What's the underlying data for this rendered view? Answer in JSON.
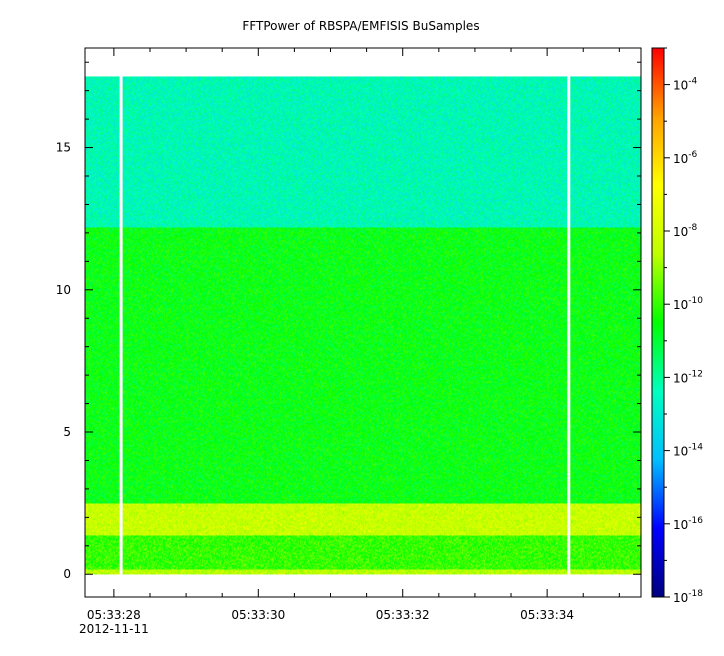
{
  "chart_data": {
    "type": "heatmap",
    "title": "FFTPower of RBSPA/EMFISIS  BuSamples",
    "xlabel": "",
    "ylabel": "",
    "x_axis": {
      "start_label": "05:33:28",
      "start_date": "2012-11-11",
      "tick_labels": [
        "05:33:28",
        "05:33:30",
        "05:33:32",
        "05:33:34"
      ],
      "range": [
        "05:33:27.6",
        "05:33:35.3"
      ]
    },
    "y_axis": {
      "ticks": [
        0,
        5,
        10,
        15
      ],
      "tick_labels": [
        "0",
        "5",
        "10",
        "15"
      ],
      "range": [
        -0.8,
        18.5
      ]
    },
    "colorbar": {
      "scale": "log",
      "range": [
        1e-18,
        0.001
      ],
      "ticks": [
        {
          "base": "10",
          "exp": "-4"
        },
        {
          "base": "10",
          "exp": "-6"
        },
        {
          "base": "10",
          "exp": "-8"
        },
        {
          "base": "10",
          "exp": "-10"
        },
        {
          "base": "10",
          "exp": "-12"
        },
        {
          "base": "10",
          "exp": "-14"
        },
        {
          "base": "10",
          "exp": "-16"
        },
        {
          "base": "10",
          "exp": "-18"
        }
      ],
      "tick_values": [
        -4,
        -6,
        -8,
        -10,
        -12,
        -14,
        -16,
        -18
      ],
      "colors": [
        "#00007f",
        "#0000ff",
        "#00bfff",
        "#00ffbf",
        "#00ff00",
        "#bfff00",
        "#ffff00",
        "#ffa000",
        "#ff0000"
      ]
    },
    "data_extent": {
      "y_min": 0,
      "y_max": 17.5
    },
    "gaps": [
      "05:33:28.1",
      "05:33:34.3"
    ],
    "bands": [
      {
        "y_range": [
          12.2,
          17.5
        ],
        "level": -12.4,
        "description": "upper band"
      },
      {
        "y_range": [
          2.5,
          12.2
        ],
        "level": -10.6,
        "description": "mid band"
      },
      {
        "y_range": [
          1.4,
          2.5
        ],
        "level": -8.3,
        "description": "enhanced band"
      },
      {
        "y_range": [
          0.2,
          1.4
        ],
        "level": -10.0,
        "description": "lower band"
      },
      {
        "y_range": [
          0,
          0.2
        ],
        "level": -8.6,
        "description": "baseline"
      }
    ]
  }
}
